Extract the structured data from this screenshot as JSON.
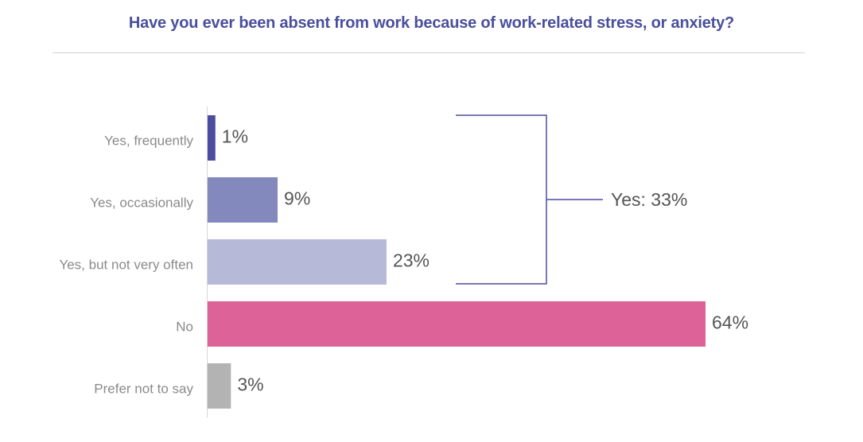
{
  "chart_data": {
    "type": "bar",
    "orientation": "horizontal",
    "title": "Have you ever been absent from work because of work-related stress, or anxiety?",
    "categories": [
      "Yes, frequently",
      "Yes, occasionally",
      "Yes, but not very often",
      "No",
      "Prefer not to say"
    ],
    "values": [
      1,
      9,
      23,
      64,
      3
    ],
    "value_labels": [
      "1%",
      "9%",
      "23%",
      "64%",
      "3%"
    ],
    "colors": [
      "#4b4d9e",
      "#8388bd",
      "#b7b9d8",
      "#dc6298",
      "#b3b3b3"
    ],
    "xlim": [
      0,
      64
    ],
    "grid": false,
    "legend": "none",
    "annotation": {
      "text": "Yes: 33%",
      "spans_categories": [
        "Yes, frequently",
        "Yes, occasionally",
        "Yes, but not very often"
      ],
      "color": "#4b4d9e"
    }
  }
}
